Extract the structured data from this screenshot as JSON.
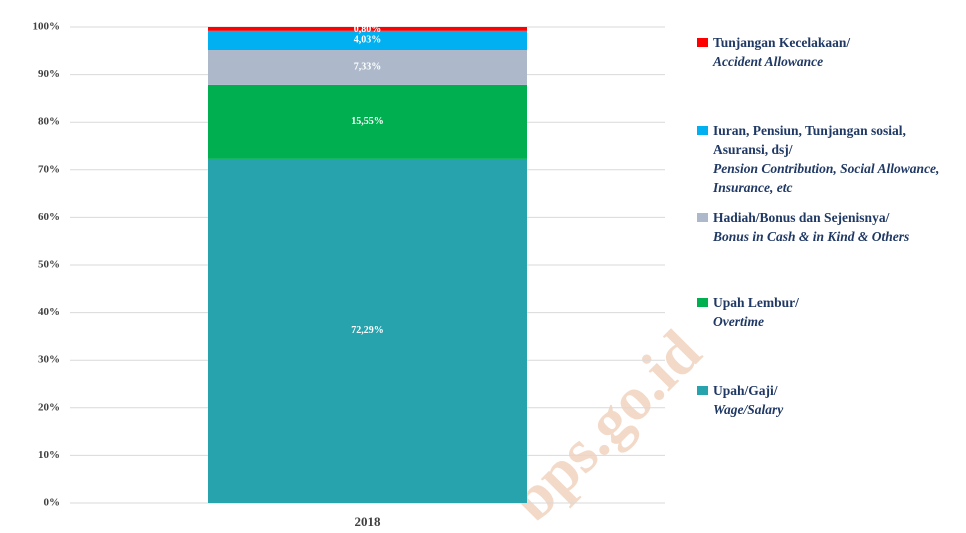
{
  "chart_data": {
    "type": "stacked_bar",
    "categories": [
      "2018"
    ],
    "series": [
      {
        "name": "Upah/Gaji/",
        "name_en": "Wage/Salary",
        "color": "#26a3ad",
        "values": [
          72.29
        ],
        "value_labels": [
          "72,29%"
        ]
      },
      {
        "name": "Upah Lembur/",
        "name_en": "Overtime",
        "color": "#00b050",
        "values": [
          15.55
        ],
        "value_labels": [
          "15,55%"
        ]
      },
      {
        "name": "Hadiah/Bonus dan Sejenisnya/",
        "name_en": "Bonus in Cash & in Kind & Others",
        "color": "#adb9ca",
        "values": [
          7.33
        ],
        "value_labels": [
          "7,33%"
        ]
      },
      {
        "name": "Iuran, Pensiun, Tunjangan sosial, Asuransi, dsj/",
        "name_en": "Pension Contribution, Social Allowance, Insurance, etc",
        "color": "#00b0f0",
        "values": [
          4.03
        ],
        "value_labels": [
          "4,03%"
        ]
      },
      {
        "name": "Tunjangan Kecelakaan/",
        "name_en": "Accident Allowance",
        "color": "#ff0000",
        "values": [
          0.8
        ],
        "value_labels": [
          "0,80%"
        ]
      }
    ],
    "ylim": [
      0,
      100
    ],
    "yticks": [
      {
        "value": 0,
        "label": "0%"
      },
      {
        "value": 10,
        "label": "10%"
      },
      {
        "value": 20,
        "label": "20%"
      },
      {
        "value": 30,
        "label": "30%"
      },
      {
        "value": 40,
        "label": "40%"
      },
      {
        "value": 50,
        "label": "50%"
      },
      {
        "value": 60,
        "label": "60%"
      },
      {
        "value": 70,
        "label": "70%"
      },
      {
        "value": 80,
        "label": "80%"
      },
      {
        "value": 90,
        "label": "90%"
      },
      {
        "value": 100,
        "label": "100%"
      }
    ],
    "grid": true,
    "legend": "right",
    "watermark": "bps.go.id"
  }
}
